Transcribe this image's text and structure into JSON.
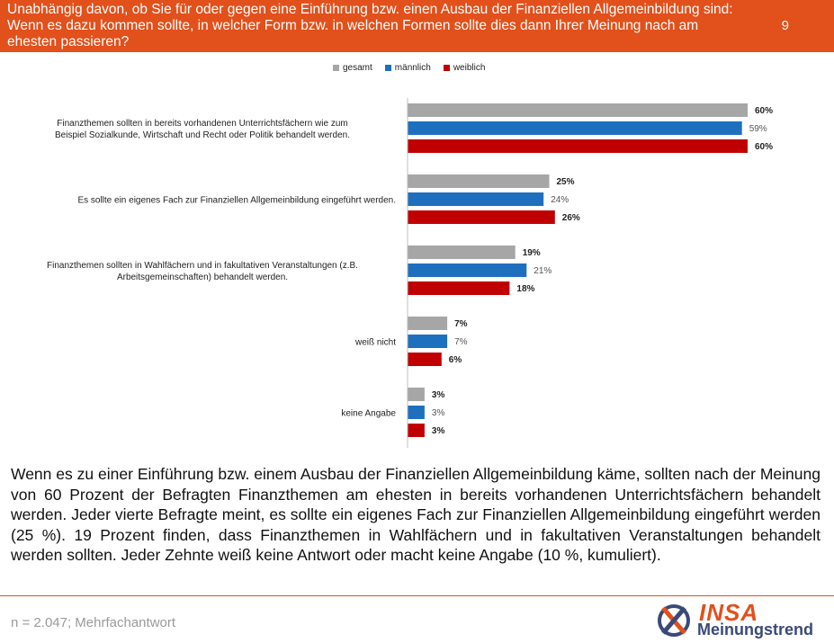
{
  "header": {
    "question": "Unabhängig davon, ob Sie für oder gegen eine Einführung bzw. einen Ausbau der Finanziellen Allgemeinbildung sind:\nWenn es dazu kommen sollte, in welcher Form bzw. in welchen Formen sollte dies dann Ihrer Meinung nach am\nehesten passieren?",
    "page_number": "9"
  },
  "colors": {
    "header": "#e2501b",
    "gesamt": "#a6a6a6",
    "maennlich": "#1f6fbf",
    "weiblich": "#c00000"
  },
  "chart_data": {
    "type": "bar",
    "orientation": "horizontal",
    "legend_position": "top",
    "categories": [
      "Finanzthemen sollten in bereits vorhandenen Unterrichtsfächern wie zum\nBeispiel Sozialkunde, Wirtschaft und Recht oder Politik behandelt werden.",
      "Es sollte ein eigenes Fach zur Finanziellen Allgemeinbildung eingeführt werden.",
      "Finanzthemen sollten in Wahlfächern und in fakultativen Veranstaltungen (z.B.\nArbeitsgemeinschaften) behandelt werden.",
      "weiß nicht",
      "keine Angabe"
    ],
    "series": [
      {
        "name": "gesamt",
        "values": [
          60,
          25,
          19,
          7,
          3
        ],
        "labels": [
          "60%",
          "25%",
          "19%",
          "7%",
          "3%"
        ]
      },
      {
        "name": "männlich",
        "values": [
          59,
          24,
          21,
          7,
          3
        ],
        "labels": [
          "59%",
          "24%",
          "21%",
          "7%",
          "3%"
        ]
      },
      {
        "name": "weiblich",
        "values": [
          60,
          26,
          18,
          6,
          3
        ],
        "labels": [
          "60%",
          "26%",
          "18%",
          "6%",
          "3%"
        ]
      }
    ],
    "unit": "%"
  },
  "summary": "Wenn es zu einer Einführung bzw. einem Ausbau der Finanziellen Allgemeinbildung käme, sollten nach der Meinung von 60 Prozent der Befragten Finanzthemen am ehesten in bereits vorhandenen Unterrichtsfächern behandelt werden. Jeder vierte Befragte meint, es sollte ein eigenes Fach zur Finanziellen Allgemeinbildung eingeführt werden (25 %). 19 Prozent finden, dass Finanzthemen in Wahlfächern und in fakultativen Veranstaltungen behandelt werden sollten. Jeder Zehnte weiß keine Antwort oder macht keine Angabe (10 %, kumuliert).",
  "footnote": "n = 2.047; Mehrfachantwort",
  "logo": {
    "line1": "INSA",
    "line2": "Meinungstrend"
  }
}
